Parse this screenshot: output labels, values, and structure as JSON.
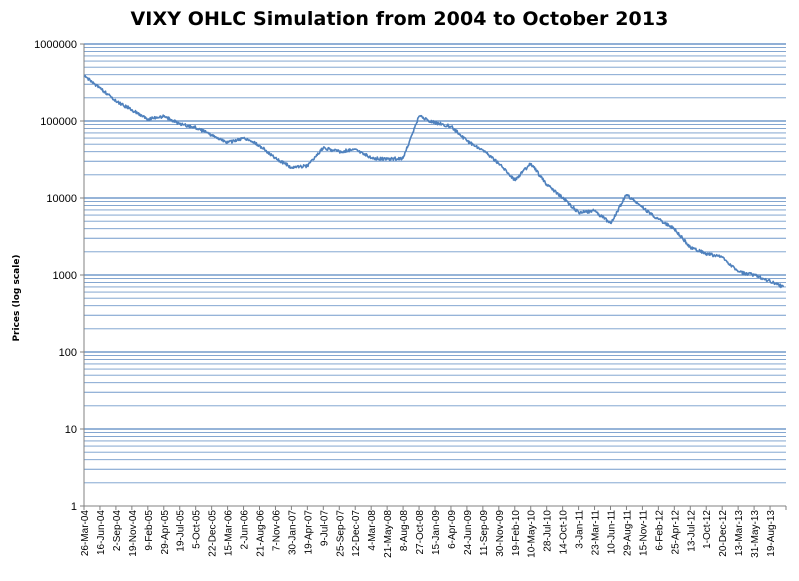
{
  "chart_data": {
    "type": "line",
    "title": "VIXY OHLC Simulation from 2004 to October 2013",
    "xlabel": "",
    "ylabel": "Prices (log scale)",
    "y_scale": "log",
    "ylim": [
      1,
      1000000
    ],
    "y_ticks": [
      "1",
      "10",
      "100",
      "1000",
      "10000",
      "100000",
      "1000000"
    ],
    "grid": "horizontal major and minor",
    "legend": "none",
    "colors": {
      "series": "#4f81bd",
      "grid": "#4f81bd",
      "axis": "#808080"
    },
    "x_ticks": [
      "26-Mar-04",
      "16-Jun-04",
      "2-Sep-04",
      "19-Nov-04",
      "9-Feb-05",
      "29-Apr-05",
      "19-Jul-05",
      "5-Oct-05",
      "22-Dec-05",
      "15-Mar-06",
      "2-Jun-06",
      "21-Aug-06",
      "7-Nov-06",
      "30-Jan-07",
      "19-Apr-07",
      "9-Jul-07",
      "25-Sep-07",
      "12-Dec-07",
      "4-Mar-08",
      "21-May-08",
      "8-Aug-08",
      "27-Oct-08",
      "15-Jan-09",
      "6-Apr-09",
      "24-Jun-09",
      "11-Sep-09",
      "30-Nov-09",
      "19-Feb-10",
      "10-May-10",
      "28-Jul-10",
      "14-Oct-10",
      "3-Jan-11",
      "23-Mar-11",
      "10-Jun-11",
      "29-Aug-11",
      "15-Nov-11",
      "6-Feb-12",
      "25-Apr-12",
      "13-Jul-12",
      "1-Oct-12",
      "20-Dec-12",
      "13-Mar-13",
      "31-May-13",
      "19-Aug-13"
    ],
    "series": [
      {
        "x": [
          "26-Mar-04",
          "16-Jun-04",
          "2-Sep-04",
          "19-Nov-04",
          "9-Feb-05",
          "29-Apr-05",
          "19-Jul-05",
          "5-Oct-05",
          "22-Dec-05",
          "15-Mar-06",
          "2-Jun-06",
          "21-Aug-06",
          "7-Nov-06",
          "30-Jan-07",
          "19-Apr-07",
          "9-Jul-07",
          "25-Sep-07",
          "12-Dec-07",
          "4-Mar-08",
          "21-May-08",
          "8-Aug-08",
          "27-Oct-08",
          "15-Jan-09",
          "6-Apr-09",
          "24-Jun-09",
          "11-Sep-09",
          "30-Nov-09",
          "19-Feb-10",
          "10-May-10",
          "28-Jul-10",
          "14-Oct-10",
          "3-Jan-11",
          "23-Mar-11",
          "10-Jun-11",
          "29-Aug-11",
          "15-Nov-11",
          "6-Feb-12",
          "25-Apr-12",
          "13-Jul-12",
          "1-Oct-12",
          "20-Dec-12",
          "13-Mar-13",
          "31-May-13",
          "19-Aug-13",
          "25-Oct-13"
        ],
        "values": [
          380000,
          270000,
          180000,
          140000,
          105000,
          115000,
          92000,
          82000,
          66000,
          52000,
          60000,
          48000,
          33000,
          25000,
          26000,
          45000,
          40000,
          43000,
          33000,
          32000,
          33000,
          115000,
          95000,
          85000,
          55000,
          42000,
          28000,
          17000,
          28000,
          15000,
          10000,
          6500,
          6800,
          4700,
          11000,
          7500,
          5300,
          4000,
          2300,
          1900,
          1700,
          1100,
          1000,
          830,
          700
        ]
      }
    ]
  }
}
